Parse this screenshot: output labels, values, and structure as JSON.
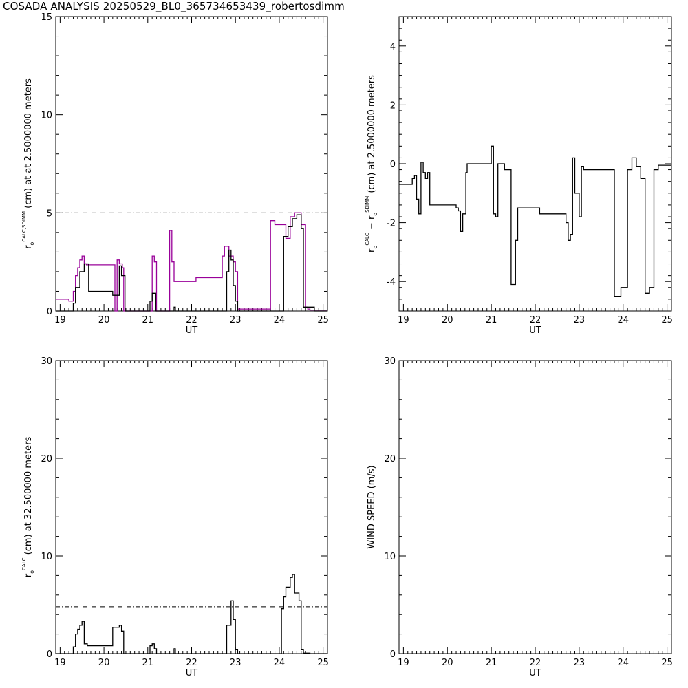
{
  "title": "COSADA ANALYSIS 20250529_BL0_365734653439_robertosdimm",
  "colors": {
    "axis": "#000000",
    "calc": "#000000",
    "sdimm": "#990099"
  },
  "chart_data": [
    {
      "id": "p1",
      "type": "line",
      "xlabel": "UT",
      "ylabel_parts": {
        "main": "r",
        "sub": "o",
        "sup": "CALC,SDIMM",
        "rest": "(cm)  at  at 2.5000000 meters"
      },
      "xlim": [
        18.9,
        25.1
      ],
      "ylim": [
        0,
        15
      ],
      "xticks": [
        19,
        20,
        21,
        22,
        23,
        24,
        25
      ],
      "yticks": [
        0,
        5,
        10,
        15
      ],
      "reference_line": {
        "y": 5,
        "style": "dash-dot"
      },
      "series": [
        {
          "color_key": "sdimm",
          "x": [
            18.9,
            19.2,
            19.2,
            19.3,
            19.3,
            19.35,
            19.35,
            19.4,
            19.4,
            19.45,
            19.45,
            19.5,
            19.5,
            19.55,
            19.55,
            19.6,
            19.6,
            20.25,
            20.25,
            20.3,
            20.3,
            20.35,
            20.35,
            20.42,
            20.42,
            20.45,
            20.45,
            20.5,
            20.5,
            21.1,
            21.1,
            21.15,
            21.15,
            21.2,
            21.2,
            21.5,
            21.5,
            21.55,
            21.55,
            21.6,
            21.6,
            22.1,
            22.1,
            22.7,
            22.7,
            22.75,
            22.75,
            22.85,
            22.85,
            22.95,
            22.95,
            23.0,
            23.0,
            23.05,
            23.05,
            23.8,
            23.8,
            23.9,
            23.9,
            24.15,
            24.15,
            24.25,
            24.25,
            24.35,
            24.35,
            24.5,
            24.5,
            24.6,
            24.6,
            24.65,
            24.65,
            24.7,
            24.7,
            25.1
          ],
          "y": [
            0.6,
            0.6,
            0.5,
            0.5,
            1.0,
            1.0,
            1.8,
            1.8,
            2.2,
            2.2,
            2.6,
            2.6,
            2.8,
            2.8,
            2.4,
            2.4,
            2.35,
            2.35,
            0,
            0,
            2.6,
            2.6,
            2.4,
            2.4,
            2.2,
            2.2,
            0,
            0,
            0,
            0,
            2.8,
            2.8,
            2.5,
            2.5,
            0,
            0,
            4.1,
            4.1,
            2.5,
            2.5,
            1.5,
            1.5,
            1.7,
            1.7,
            2.8,
            2.8,
            3.3,
            3.3,
            2.8,
            2.8,
            2.5,
            2.5,
            2.0,
            2.0,
            0.1,
            0.1,
            4.6,
            4.6,
            4.4,
            4.4,
            3.7,
            3.7,
            4.8,
            4.8,
            5.0,
            5.0,
            4.4,
            4.4,
            0.2,
            0.2,
            0.1,
            0.1,
            0.05,
            0.05
          ]
        },
        {
          "color_key": "calc",
          "x": [
            18.9,
            19.3,
            19.3,
            19.35,
            19.35,
            19.45,
            19.45,
            19.55,
            19.55,
            19.65,
            19.65,
            20.2,
            20.2,
            20.35,
            20.35,
            20.4,
            20.4,
            20.48,
            20.48,
            21.05,
            21.05,
            21.1,
            21.1,
            21.18,
            21.18,
            21.6,
            21.6,
            21.63,
            21.63,
            22.8,
            22.8,
            22.85,
            22.85,
            22.9,
            22.9,
            22.95,
            22.95,
            23.0,
            23.0,
            23.05,
            23.05,
            24.1,
            24.1,
            24.2,
            24.2,
            24.3,
            24.3,
            24.4,
            24.4,
            24.5,
            24.5,
            24.55,
            24.55,
            24.8,
            24.8,
            25.1
          ],
          "y": [
            0,
            0,
            0.4,
            0.4,
            1.2,
            1.2,
            2.0,
            2.0,
            2.4,
            2.4,
            1.0,
            1.0,
            0.8,
            0.8,
            2.3,
            2.3,
            1.8,
            1.8,
            0,
            0,
            0.5,
            0.5,
            0.9,
            0.9,
            0,
            0,
            0.2,
            0.2,
            0,
            0,
            2.0,
            2.0,
            3.1,
            3.1,
            2.6,
            2.6,
            1.3,
            1.3,
            0.5,
            0.5,
            0,
            0,
            3.8,
            3.8,
            4.3,
            4.3,
            4.7,
            4.7,
            4.9,
            4.9,
            4.2,
            4.2,
            0.2,
            0.2,
            0,
            0
          ]
        }
      ]
    },
    {
      "id": "p2",
      "type": "line",
      "xlabel": "UT",
      "ylabel_parts": {
        "main": "r",
        "sub": "o",
        "sup": "CALC",
        "mid": " − r",
        "sub2": "o",
        "sup2": "SDIMM",
        "rest": "(cm) at 2.5000000 meters"
      },
      "xlim": [
        18.9,
        25.1
      ],
      "ylim": [
        -5,
        5
      ],
      "xticks": [
        19,
        20,
        21,
        22,
        23,
        24,
        25
      ],
      "yticks": [
        -4,
        -2,
        0,
        2,
        4
      ],
      "series": [
        {
          "color_key": "calc",
          "x": [
            18.9,
            19.2,
            19.2,
            19.25,
            19.25,
            19.3,
            19.3,
            19.35,
            19.35,
            19.4,
            19.4,
            19.45,
            19.45,
            19.5,
            19.5,
            19.55,
            19.55,
            19.6,
            19.6,
            20.2,
            20.2,
            20.25,
            20.25,
            20.3,
            20.3,
            20.35,
            20.35,
            20.42,
            20.42,
            20.45,
            20.45,
            21.0,
            21.0,
            21.05,
            21.05,
            21.1,
            21.1,
            21.15,
            21.15,
            21.3,
            21.3,
            21.45,
            21.45,
            21.55,
            21.55,
            21.6,
            21.6,
            22.1,
            22.1,
            22.7,
            22.7,
            22.75,
            22.75,
            22.8,
            22.8,
            22.85,
            22.85,
            22.9,
            22.9,
            23.0,
            23.0,
            23.05,
            23.05,
            23.1,
            23.1,
            23.8,
            23.8,
            23.95,
            23.95,
            24.1,
            24.1,
            24.2,
            24.2,
            24.3,
            24.3,
            24.4,
            24.4,
            24.5,
            24.5,
            24.6,
            24.6,
            24.7,
            24.7,
            24.8,
            24.8,
            25.1
          ],
          "y": [
            -0.7,
            -0.7,
            -0.5,
            -0.5,
            -0.4,
            -0.4,
            -1.2,
            -1.2,
            -1.7,
            -1.7,
            0.05,
            0.05,
            -0.3,
            -0.3,
            -0.5,
            -0.5,
            -0.3,
            -0.3,
            -1.4,
            -1.4,
            -1.5,
            -1.5,
            -1.6,
            -1.6,
            -2.3,
            -2.3,
            -1.7,
            -1.7,
            -0.3,
            -0.3,
            0,
            0,
            0.6,
            0.6,
            -1.7,
            -1.7,
            -1.8,
            -1.8,
            0,
            0,
            -0.2,
            -0.2,
            -4.1,
            -4.1,
            -2.6,
            -2.6,
            -1.5,
            -1.5,
            -1.7,
            -1.7,
            -2.0,
            -2.0,
            -2.6,
            -2.6,
            -2.4,
            -2.4,
            0.2,
            0.2,
            -1.0,
            -1.0,
            -1.8,
            -1.8,
            -0.1,
            -0.1,
            -0.2,
            -0.2,
            -4.5,
            -4.5,
            -4.2,
            -4.2,
            -0.2,
            -0.2,
            0.2,
            0.2,
            -0.1,
            -0.1,
            -0.5,
            -0.5,
            -4.4,
            -4.4,
            -4.2,
            -4.2,
            -0.2,
            -0.2,
            -0.05,
            -0.05
          ]
        }
      ]
    },
    {
      "id": "p3",
      "type": "line",
      "xlabel": "UT",
      "ylabel_parts": {
        "main": "r",
        "sub": "o",
        "sup": "CALC",
        "rest": "(cm) at 32.500000 meters"
      },
      "xlim": [
        18.9,
        25.1
      ],
      "ylim": [
        0,
        30
      ],
      "xticks": [
        19,
        20,
        21,
        22,
        23,
        24,
        25
      ],
      "yticks": [
        0,
        10,
        20,
        30
      ],
      "reference_line": {
        "y": 4.8,
        "style": "dash-dot"
      },
      "series": [
        {
          "color_key": "calc",
          "x": [
            18.9,
            19.3,
            19.3,
            19.35,
            19.35,
            19.4,
            19.4,
            19.45,
            19.45,
            19.5,
            19.5,
            19.55,
            19.55,
            19.62,
            19.62,
            20.2,
            20.2,
            20.35,
            20.35,
            20.4,
            20.4,
            20.45,
            20.45,
            20.5,
            20.5,
            21.05,
            21.05,
            21.1,
            21.1,
            21.15,
            21.15,
            21.2,
            21.2,
            21.6,
            21.6,
            21.63,
            21.63,
            22.8,
            22.8,
            22.9,
            22.9,
            22.95,
            22.95,
            23.0,
            23.0,
            23.05,
            23.05,
            24.05,
            24.05,
            24.1,
            24.1,
            24.15,
            24.15,
            24.25,
            24.25,
            24.3,
            24.3,
            24.35,
            24.35,
            24.45,
            24.45,
            24.5,
            24.5,
            24.55,
            24.55,
            24.7,
            24.7,
            25.1
          ],
          "y": [
            0,
            0,
            0.7,
            0.7,
            2.0,
            2.0,
            2.5,
            2.5,
            2.9,
            2.9,
            3.3,
            3.3,
            1.0,
            1.0,
            0.8,
            0.8,
            2.7,
            2.7,
            2.9,
            2.9,
            2.3,
            2.3,
            0,
            0,
            0,
            0,
            0.8,
            0.8,
            1.0,
            1.0,
            0.5,
            0.5,
            0,
            0,
            0.5,
            0.5,
            0,
            0,
            2.9,
            2.9,
            5.4,
            5.4,
            3.5,
            3.5,
            0.4,
            0.4,
            0,
            0,
            4.6,
            4.6,
            5.8,
            5.8,
            6.8,
            6.8,
            7.8,
            7.8,
            8.1,
            8.1,
            6.2,
            6.2,
            5.4,
            5.4,
            0.4,
            0.4,
            0.05,
            0.05,
            0,
            0
          ]
        }
      ]
    },
    {
      "id": "p4",
      "type": "line",
      "xlabel": "UT",
      "ylabel_parts": {
        "main": "WIND SPEED (m/s)"
      },
      "xlim": [
        18.9,
        25.1
      ],
      "ylim": [
        0,
        30
      ],
      "xticks": [
        19,
        20,
        21,
        22,
        23,
        24,
        25
      ],
      "yticks": [
        0,
        10,
        20,
        30
      ],
      "series": []
    }
  ]
}
